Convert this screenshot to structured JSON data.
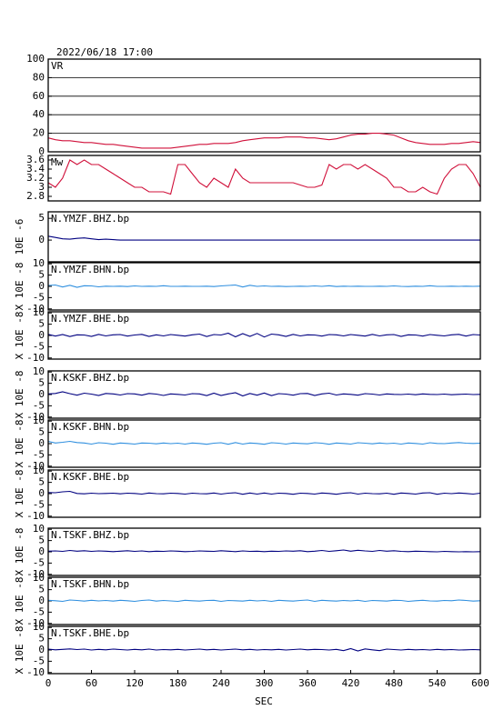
{
  "header": {
    "title": "2022/06/18 17:00"
  },
  "x_axis": {
    "label": "SEC",
    "xlim": [
      0,
      600
    ],
    "xticks": [
      0,
      60,
      120,
      180,
      240,
      300,
      360,
      420,
      480,
      540,
      600
    ],
    "x": [
      0,
      10,
      20,
      30,
      40,
      50,
      60,
      70,
      80,
      90,
      100,
      110,
      120,
      130,
      140,
      150,
      160,
      170,
      180,
      190,
      200,
      210,
      220,
      230,
      240,
      250,
      260,
      270,
      280,
      290,
      300,
      310,
      320,
      330,
      340,
      350,
      360,
      370,
      380,
      390,
      400,
      410,
      420,
      430,
      440,
      450,
      460,
      470,
      480,
      490,
      500,
      510,
      520,
      530,
      540,
      550,
      560,
      570,
      580,
      590,
      600
    ]
  },
  "chart_data": [
    {
      "type": "line",
      "title": "VR",
      "color": "#d0103a",
      "grid": true,
      "ylim": [
        0,
        100
      ],
      "yticks": [
        0,
        20,
        40,
        60,
        80,
        100
      ],
      "values": [
        15,
        13,
        12,
        12,
        11,
        10,
        10,
        9,
        8,
        8,
        7,
        6,
        5,
        4,
        4,
        4,
        4,
        4,
        5,
        6,
        7,
        8,
        8,
        9,
        9,
        9,
        10,
        12,
        13,
        14,
        15,
        15,
        15,
        16,
        16,
        16,
        15,
        15,
        14,
        13,
        14,
        16,
        18,
        19,
        19,
        20,
        20,
        19,
        18,
        15,
        12,
        10,
        9,
        8,
        8,
        8,
        9,
        9,
        10,
        11,
        10
      ]
    },
    {
      "type": "line",
      "title": "Mw",
      "color": "#d0103a",
      "ylim": [
        2.7,
        3.7
      ],
      "yticks": [
        2.8,
        3.0,
        3.2,
        3.4,
        3.6
      ],
      "values": [
        3.1,
        3.0,
        3.2,
        3.6,
        3.5,
        3.6,
        3.5,
        3.5,
        3.4,
        3.3,
        3.2,
        3.1,
        3.0,
        3.0,
        2.9,
        2.9,
        2.9,
        2.85,
        3.5,
        3.5,
        3.3,
        3.1,
        3.0,
        3.2,
        3.1,
        3.0,
        3.4,
        3.2,
        3.1,
        3.1,
        3.1,
        3.1,
        3.1,
        3.1,
        3.1,
        3.05,
        3.0,
        3.0,
        3.05,
        3.5,
        3.4,
        3.5,
        3.5,
        3.4,
        3.5,
        3.4,
        3.3,
        3.2,
        3.0,
        3.0,
        2.9,
        2.9,
        3.0,
        2.9,
        2.85,
        3.2,
        3.4,
        3.5,
        3.5,
        3.3,
        3.0
      ]
    },
    {
      "type": "line",
      "title": "N.YMZF.BHZ.bp",
      "ylabel": "10E -6",
      "color": "#000080",
      "ylim": [
        -5,
        6.5
      ],
      "yticks": [
        0,
        5
      ],
      "values": [
        0.9,
        0.6,
        0.3,
        0.2,
        0.4,
        0.5,
        0.3,
        0.1,
        0.2,
        0.1,
        0,
        0,
        0,
        0,
        0,
        0,
        0,
        0,
        0,
        0,
        0,
        0,
        0,
        0,
        0,
        0,
        0,
        0,
        0,
        0,
        0,
        0,
        0,
        0,
        0,
        0,
        0,
        0,
        0,
        0,
        0,
        0,
        0,
        0,
        0,
        0,
        0,
        0,
        0,
        0,
        0,
        0,
        0,
        0,
        0,
        0,
        0,
        0,
        0,
        0,
        0
      ]
    },
    {
      "type": "line",
      "title": "N.YMZF.BHN.bp",
      "ylabel": "X 10E -8",
      "color": "#2f8fdf",
      "ylim": [
        -10.5,
        10.5
      ],
      "yticks": [
        -10,
        -5,
        0,
        5,
        10
      ],
      "values": [
        0.4,
        0.6,
        -0.3,
        0.5,
        -0.4,
        0.3,
        0.2,
        -0.2,
        0.1,
        0,
        0.1,
        -0.1,
        0.2,
        0,
        0.1,
        0,
        0.3,
        0,
        0,
        0.1,
        0,
        0,
        0.1,
        -0.1,
        0.2,
        0.4,
        0.6,
        -0.3,
        0.5,
        0,
        0.2,
        0,
        0.1,
        -0.1,
        0,
        0.1,
        0,
        0.2,
        0,
        0.3,
        -0.1,
        0.1,
        0,
        0.1,
        0,
        0,
        0.1,
        0,
        0.2,
        0,
        -0.1,
        0.1,
        0,
        0.3,
        0,
        0,
        0.1,
        0,
        0.1,
        0,
        0.1
      ]
    },
    {
      "type": "line",
      "title": "N.YMZF.BHE.bp",
      "ylabel": "X 10E -8",
      "color": "#000080",
      "ylim": [
        -10.5,
        10.5
      ],
      "yticks": [
        -10,
        -5,
        0,
        5,
        10
      ],
      "values": [
        0.5,
        -0.3,
        0.4,
        -0.5,
        0.3,
        0.2,
        -0.4,
        0.5,
        -0.2,
        0.3,
        0.4,
        -0.3,
        0.2,
        0.5,
        -0.4,
        0.3,
        -0.2,
        0.4,
        0.1,
        -0.3,
        0.3,
        0.6,
        -0.5,
        0.4,
        0.2,
        1.0,
        -0.6,
        0.8,
        -0.4,
        0.9,
        -0.7,
        0.6,
        0.3,
        -0.4,
        0.5,
        -0.2,
        0.3,
        0.2,
        -0.3,
        0.4,
        0.3,
        -0.2,
        0.4,
        0.1,
        -0.3,
        0.5,
        -0.2,
        0.3,
        0.4,
        -0.4,
        0.3,
        0.2,
        -0.3,
        0.4,
        0.1,
        -0.2,
        0.3,
        0.5,
        -0.3,
        0.4,
        0.2
      ]
    },
    {
      "type": "line",
      "title": "N.KSKF.BHZ.bp",
      "ylabel": "X 10E -8",
      "color": "#000080",
      "ylim": [
        -10.5,
        10.5
      ],
      "yticks": [
        -10,
        -5,
        0,
        5,
        10
      ],
      "values": [
        0.3,
        0.5,
        1.2,
        0.4,
        -0.3,
        0.6,
        0.2,
        -0.4,
        0.5,
        0.3,
        -0.2,
        0.4,
        0.3,
        -0.3,
        0.5,
        0.2,
        -0.4,
        0.3,
        0.1,
        -0.2,
        0.4,
        0.3,
        -0.5,
        0.6,
        -0.4,
        0.3,
        0.8,
        -0.6,
        0.5,
        -0.3,
        0.7,
        -0.5,
        0.4,
        0.2,
        -0.3,
        0.4,
        0.5,
        -0.4,
        0.3,
        0.6,
        -0.2,
        0.3,
        0.1,
        -0.3,
        0.4,
        0.2,
        -0.2,
        0.3,
        0.1,
        0,
        0.2,
        -0.1,
        0.3,
        0.1,
        0,
        0.2,
        -0.1,
        0.1,
        0.2,
        0,
        0.1
      ]
    },
    {
      "type": "line",
      "title": "N.KSKF.BHN.bp",
      "ylabel": "X 10E -8",
      "color": "#2f8fdf",
      "ylim": [
        -10.5,
        10.5
      ],
      "yticks": [
        -10,
        -5,
        0,
        5,
        10
      ],
      "values": [
        1.0,
        0.3,
        0.6,
        1.0,
        0.5,
        0.3,
        -0.2,
        0.4,
        0.2,
        -0.3,
        0.3,
        0.1,
        -0.2,
        0.3,
        0.2,
        -0.1,
        0.3,
        0,
        0.2,
        -0.2,
        0.3,
        0.1,
        -0.3,
        0.2,
        0.4,
        -0.3,
        0.5,
        -0.2,
        0.3,
        0.1,
        -0.3,
        0.4,
        0.2,
        -0.2,
        0.3,
        0.1,
        -0.1,
        0.4,
        0.2,
        -0.3,
        0.3,
        0.1,
        -0.2,
        0.4,
        0.2,
        -0.1,
        0.3,
        0,
        0.2,
        -0.2,
        0.3,
        0.1,
        -0.2,
        0.4,
        0.1,
        0,
        0.3,
        0.5,
        0.2,
        0.1,
        0.2
      ]
    },
    {
      "type": "line",
      "title": "N.KSKF.BHE.bp",
      "ylabel": "X 10E -8",
      "color": "#000080",
      "ylim": [
        -10.5,
        10.5
      ],
      "yticks": [
        -10,
        -5,
        0,
        5,
        10
      ],
      "values": [
        0.5,
        0.4,
        0.8,
        1.0,
        0.1,
        -0.1,
        0.2,
        0,
        0.1,
        0.2,
        -0.1,
        0.2,
        0.1,
        -0.2,
        0.3,
        0,
        -0.1,
        0.2,
        0.1,
        -0.2,
        0.2,
        0,
        -0.1,
        0.3,
        -0.2,
        0.2,
        0.4,
        -0.3,
        0.3,
        -0.2,
        0.3,
        -0.2,
        0.2,
        0.1,
        -0.3,
        0.2,
        0.1,
        -0.2,
        0.3,
        0.1,
        -0.3,
        0.2,
        0.4,
        -0.2,
        0.2,
        0,
        -0.1,
        0.2,
        -0.3,
        0.3,
        0.1,
        -0.2,
        0.3,
        0.4,
        -0.3,
        0.2,
        0,
        0.3,
        0.1,
        -0.2,
        0.2
      ]
    },
    {
      "type": "line",
      "title": "N.TSKF.BHZ.bp",
      "ylabel": "X 10E -8",
      "color": "#000080",
      "ylim": [
        -10.5,
        10.5
      ],
      "yticks": [
        -10,
        -5,
        0,
        5,
        10
      ],
      "values": [
        0.3,
        0.4,
        0.2,
        0.6,
        0.3,
        0.5,
        0.2,
        0.4,
        0.3,
        0.1,
        0.3,
        0.5,
        0.2,
        0.4,
        0.1,
        0.3,
        0.2,
        0.4,
        0.3,
        0.1,
        0.2,
        0.4,
        0.3,
        0.2,
        0.5,
        0.3,
        0.1,
        0.4,
        0.2,
        0.3,
        0.1,
        0.3,
        0.2,
        0.4,
        0.3,
        0.5,
        0.1,
        0.3,
        0.6,
        0.2,
        0.5,
        0.8,
        0.3,
        0.7,
        0.4,
        0.2,
        0.6,
        0.3,
        0.5,
        0.2,
        0.1,
        0.3,
        0.2,
        0.1,
        0,
        0.2,
        0.1,
        0,
        0.1,
        0,
        0.1
      ]
    },
    {
      "type": "line",
      "title": "N.TSKF.BHN.bp",
      "ylabel": "X 10E -8",
      "color": "#2f8fdf",
      "ylim": [
        -10.5,
        10.5
      ],
      "yticks": [
        -10,
        -5,
        0,
        5,
        10
      ],
      "values": [
        0.3,
        0.1,
        -0.2,
        0.4,
        0.2,
        -0.1,
        0.3,
        0,
        0.2,
        -0.1,
        0.3,
        0.1,
        -0.2,
        0.2,
        0.4,
        -0.1,
        0.2,
        0,
        -0.2,
        0.3,
        0.1,
        -0.1,
        0.2,
        0.3,
        -0.2,
        0.2,
        0.1,
        -0.1,
        0.3,
        0,
        0.2,
        -0.2,
        0.3,
        0.1,
        -0.1,
        0.2,
        0.4,
        -0.2,
        0.3,
        0.1,
        -0.1,
        0.2,
        0,
        0.3,
        -0.2,
        0.2,
        0.1,
        -0.1,
        0.3,
        0.2,
        -0.2,
        0.1,
        0.3,
        0,
        -0.1,
        0.2,
        0.1,
        0.4,
        0.2,
        -0.1,
        0.1
      ]
    },
    {
      "type": "line",
      "title": "N.TSKF.BHE.bp",
      "ylabel": "X 10E -8",
      "color": "#000080",
      "ylim": [
        -10.5,
        10.5
      ],
      "yticks": [
        -10,
        -5,
        0,
        5,
        10
      ],
      "values": [
        0.4,
        0.1,
        0.3,
        0.5,
        0.2,
        0.4,
        0,
        0.3,
        0.1,
        0.4,
        0.2,
        0,
        0.3,
        0.1,
        0.4,
        0,
        0.2,
        0.1,
        0.3,
        0,
        0.2,
        0.4,
        0.1,
        0.3,
        0,
        0.2,
        0.4,
        0.1,
        0.3,
        0,
        0.2,
        0.1,
        0.3,
        0,
        0.2,
        0.4,
        0.1,
        0.3,
        0.2,
        0,
        0.3,
        -0.3,
        0.6,
        -0.4,
        0.5,
        0.1,
        -0.3,
        0.4,
        0.2,
        0,
        0.3,
        0.1,
        0.2,
        0,
        0.3,
        0.1,
        0.2,
        0,
        0.1,
        0.2,
        0.1
      ]
    }
  ]
}
